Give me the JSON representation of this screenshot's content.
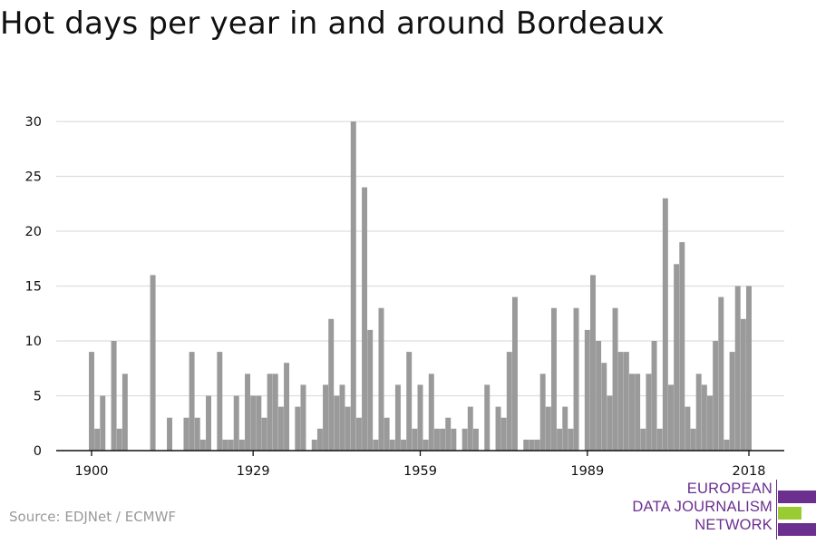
{
  "colors": {
    "bar": "#9a9a9a",
    "grid": "#dddddd",
    "axis": "#111111",
    "source": "#999999",
    "logo_purple": "#6b2f8f",
    "logo_green": "#99cc33"
  },
  "title": "Hot days per year in and around Bordeaux",
  "source": "Source: EDJNet / ECMWF",
  "logo": {
    "lines": [
      "EUROPEAN",
      "DATA JOURNALISM",
      "NETWORK"
    ],
    "icon": "edjnet-bars-logo"
  },
  "chart_data": {
    "type": "bar",
    "title": "Hot days per year in and around Bordeaux",
    "xlabel": "",
    "ylabel": "",
    "xlim": [
      1900,
      2018
    ],
    "ylim": [
      0,
      30
    ],
    "y_ticks": [
      0,
      5,
      10,
      15,
      20,
      25,
      30
    ],
    "y_tick_labels": [
      "0",
      "5",
      "10",
      "15",
      "20",
      "25",
      "30"
    ],
    "x_ticks": [
      1900,
      1929,
      1959,
      1989,
      2018
    ],
    "x_tick_labels": [
      "1900",
      "1929",
      "1959",
      "1989",
      "2018"
    ],
    "grid": true,
    "categories": [
      1900,
      1901,
      1902,
      1903,
      1904,
      1905,
      1906,
      1907,
      1908,
      1909,
      1910,
      1911,
      1912,
      1913,
      1914,
      1915,
      1916,
      1917,
      1918,
      1919,
      1920,
      1921,
      1922,
      1923,
      1924,
      1925,
      1926,
      1927,
      1928,
      1929,
      1930,
      1931,
      1932,
      1933,
      1934,
      1935,
      1936,
      1937,
      1938,
      1939,
      1940,
      1941,
      1942,
      1943,
      1944,
      1945,
      1946,
      1947,
      1948,
      1949,
      1950,
      1951,
      1952,
      1953,
      1954,
      1955,
      1956,
      1957,
      1958,
      1959,
      1960,
      1961,
      1962,
      1963,
      1964,
      1965,
      1966,
      1967,
      1968,
      1969,
      1970,
      1971,
      1972,
      1973,
      1974,
      1975,
      1976,
      1977,
      1978,
      1979,
      1980,
      1981,
      1982,
      1983,
      1984,
      1985,
      1986,
      1987,
      1988,
      1989,
      1990,
      1991,
      1992,
      1993,
      1994,
      1995,
      1996,
      1997,
      1998,
      1999,
      2000,
      2001,
      2002,
      2003,
      2004,
      2005,
      2006,
      2007,
      2008,
      2009,
      2010,
      2011,
      2012,
      2013,
      2014,
      2015,
      2016,
      2017,
      2018
    ],
    "values": [
      9,
      2,
      5,
      0,
      10,
      2,
      7,
      0,
      0,
      0,
      0,
      16,
      0,
      0,
      3,
      0,
      0,
      3,
      9,
      3,
      1,
      5,
      0,
      9,
      1,
      1,
      5,
      1,
      7,
      5,
      5,
      3,
      7,
      7,
      4,
      8,
      0,
      4,
      6,
      0,
      1,
      2,
      6,
      12,
      5,
      6,
      4,
      30,
      3,
      24,
      11,
      1,
      13,
      3,
      1,
      6,
      1,
      9,
      2,
      6,
      1,
      7,
      2,
      2,
      3,
      2,
      0,
      2,
      4,
      2,
      0,
      6,
      0,
      4,
      3,
      9,
      14,
      0,
      1,
      1,
      1,
      7,
      4,
      13,
      2,
      4,
      2,
      13,
      0,
      11,
      16,
      10,
      8,
      5,
      13,
      9,
      9,
      7,
      7,
      2,
      7,
      10,
      2,
      23,
      6,
      17,
      19,
      4,
      2,
      7,
      6,
      5,
      10,
      14,
      1,
      9,
      15,
      12,
      15
    ]
  }
}
